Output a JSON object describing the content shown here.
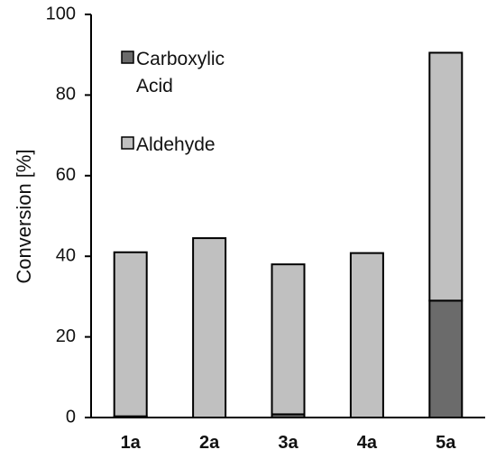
{
  "chart_data": {
    "type": "bar",
    "stacked": true,
    "categories": [
      "1a",
      "2a",
      "3a",
      "4a",
      "5a"
    ],
    "series": [
      {
        "name": "Carboxylic Acid",
        "values": [
          0.3,
          0,
          0.8,
          0,
          29
        ],
        "color": "#6b6b6b"
      },
      {
        "name": "Aldehyde",
        "values": [
          40.7,
          44.5,
          37.2,
          40.8,
          61.5
        ],
        "color": "#c0c0c0"
      }
    ],
    "ylabel": "Conversion [%]",
    "xlabel": "",
    "ylim": [
      0,
      100
    ],
    "yticks": [
      0,
      20,
      40,
      60,
      80,
      100
    ],
    "grid": false,
    "legend_placement": "top-left",
    "legend": [
      {
        "lines": [
          "Carboxylic",
          "Acid"
        ],
        "color": "#6b6b6b"
      },
      {
        "lines": [
          "Aldehyde"
        ],
        "color": "#c0c0c0"
      }
    ]
  }
}
